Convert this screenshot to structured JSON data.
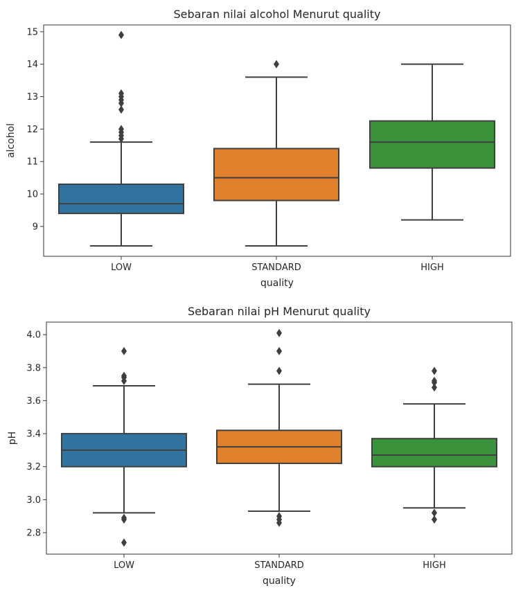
{
  "chart_data": [
    {
      "type": "box",
      "title": "Sebaran nilai alcohol Menurut quality",
      "xlabel": "quality",
      "ylabel": "alcohol",
      "categories": [
        "LOW",
        "STANDARD",
        "HIGH"
      ],
      "ylim": [
        8.08,
        15.21
      ],
      "yticks": [
        9,
        10,
        11,
        12,
        13,
        14,
        15
      ],
      "colors": [
        "#3274a1",
        "#e1812c",
        "#3a923a"
      ],
      "boxes": [
        {
          "whislo": 8.4,
          "q1": 9.4,
          "med": 9.7,
          "q3": 10.3,
          "whishi": 11.6,
          "fliers": [
            11.7,
            11.8,
            11.9,
            12.0,
            12.6,
            12.8,
            12.9,
            13.0,
            13.1,
            14.9
          ]
        },
        {
          "whislo": 8.4,
          "q1": 9.8,
          "med": 10.5,
          "q3": 11.4,
          "whishi": 13.6,
          "fliers": [
            14.0
          ]
        },
        {
          "whislo": 9.2,
          "q1": 10.8,
          "med": 11.6,
          "q3": 12.25,
          "whishi": 14.0,
          "fliers": []
        }
      ]
    },
    {
      "type": "box",
      "title": "Sebaran nilai pH Menurut quality",
      "xlabel": "quality",
      "ylabel": "pH",
      "categories": [
        "LOW",
        "STANDARD",
        "HIGH"
      ],
      "ylim": [
        2.67,
        4.076
      ],
      "yticks": [
        "2.8",
        "3.0",
        "3.2",
        "3.4",
        "3.6",
        "3.8",
        "4.0"
      ],
      "colors": [
        "#3274a1",
        "#e1812c",
        "#3a923a"
      ],
      "boxes": [
        {
          "whislo": 2.92,
          "q1": 3.2,
          "med": 3.3,
          "q3": 3.4,
          "whishi": 3.69,
          "fliers": [
            3.9,
            3.75,
            3.74,
            3.72,
            2.89,
            2.88,
            2.74
          ]
        },
        {
          "whislo": 2.93,
          "q1": 3.22,
          "med": 3.32,
          "q3": 3.42,
          "whishi": 3.7,
          "fliers": [
            4.01,
            3.9,
            3.78,
            2.9,
            2.88,
            2.86
          ]
        },
        {
          "whislo": 2.95,
          "q1": 3.2,
          "med": 3.27,
          "q3": 3.37,
          "whishi": 3.58,
          "fliers": [
            3.78,
            3.72,
            3.71,
            3.68,
            2.92,
            2.88
          ]
        }
      ]
    }
  ]
}
